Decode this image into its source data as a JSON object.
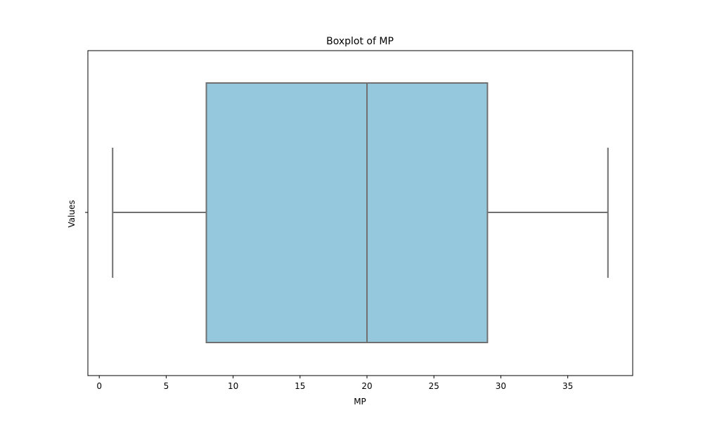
{
  "chart_data": {
    "type": "box",
    "title": "Boxplot of MP",
    "xlabel": "MP",
    "ylabel": "Values",
    "orientation": "horizontal",
    "box": {
      "whisker_low": 1,
      "q1": 8,
      "median": 20,
      "q3": 29,
      "whisker_high": 38
    },
    "xlim": [
      -0.85,
      39.85
    ],
    "xticks": [
      0,
      5,
      10,
      15,
      20,
      25,
      30,
      35
    ],
    "colors": {
      "box_fill": "#95c8dd",
      "box_edge": "#707070"
    },
    "grid": false
  }
}
